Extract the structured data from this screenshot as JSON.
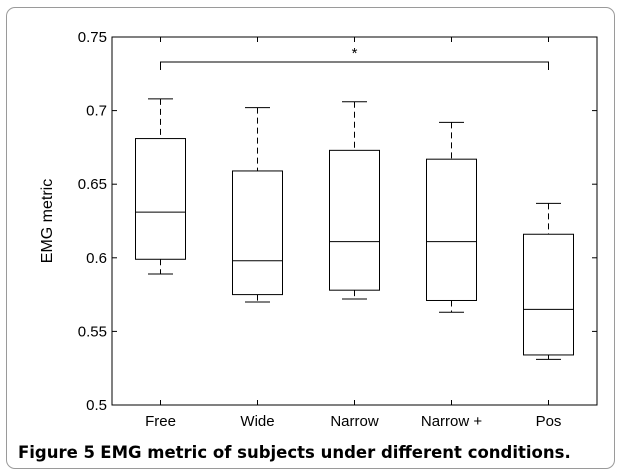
{
  "figure": {
    "label": "Figure 5",
    "caption": "EMG metric of subjects under different conditions."
  },
  "chart_data": {
    "type": "boxplot",
    "ylabel": "EMG metric",
    "xlabel": "",
    "ylim": [
      0.5,
      0.75
    ],
    "yticks": [
      "0.5",
      "0.55",
      "0.6",
      "0.65",
      "0.7",
      "0.75"
    ],
    "categories": [
      "Free",
      "Wide",
      "Narrow",
      "Narrow +",
      "Pos"
    ],
    "boxes": [
      {
        "label": "Free",
        "min": 0.589,
        "q1": 0.599,
        "median": 0.631,
        "q3": 0.681,
        "max": 0.708
      },
      {
        "label": "Wide",
        "min": 0.57,
        "q1": 0.575,
        "median": 0.598,
        "q3": 0.659,
        "max": 0.702
      },
      {
        "label": "Narrow",
        "min": 0.572,
        "q1": 0.578,
        "median": 0.611,
        "q3": 0.673,
        "max": 0.706
      },
      {
        "label": "Narrow +",
        "min": 0.563,
        "q1": 0.571,
        "median": 0.611,
        "q3": 0.667,
        "max": 0.692
      },
      {
        "label": "Pos",
        "min": 0.531,
        "q1": 0.534,
        "median": 0.565,
        "q3": 0.616,
        "max": 0.637
      }
    ],
    "significance": {
      "from": "Free",
      "to": "Pos",
      "level": 0.733,
      "marker": "*"
    },
    "grid": false,
    "colors": {
      "box": "#000000",
      "whisker_dash": "#000000"
    }
  }
}
